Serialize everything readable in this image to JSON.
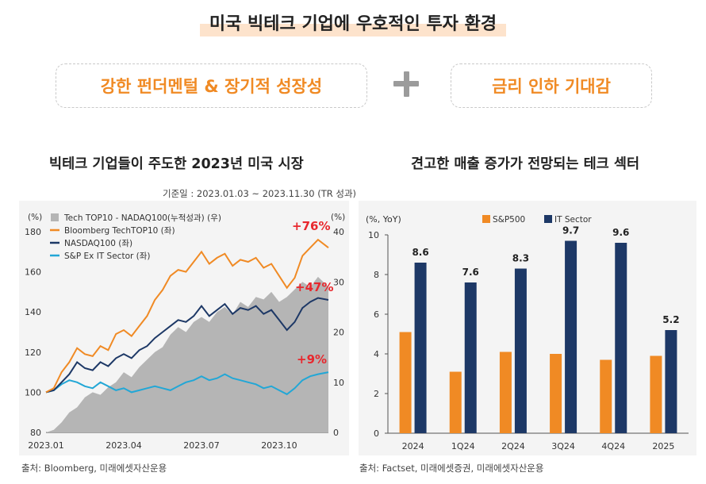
{
  "header": {
    "title": "미국 빅테크 기업에 우호적인 투자 환경",
    "pill_left": "강한 펀더멘털 & 장기적 성장성",
    "pill_right": "금리 인하 기대감"
  },
  "left_panel": {
    "title": "빅테크 기업들이 주도한 2023년 미국 시장",
    "basis": "기준일 : 2023.01.03 ~ 2023.11.30 (TR 성과)",
    "source": "출처: Bloomberg, 미래에셋자산운용"
  },
  "right_panel": {
    "title": "견고한 매출 증가가 전망되는 테크 섹터",
    "source": "출처: Factset, 미래에셋증권, 미래에셋자산운용"
  },
  "chart_data": [
    {
      "type": "line",
      "y_unit_left": "(%)",
      "y_unit_right": "(%)",
      "ylim_left": [
        80,
        180
      ],
      "yticks_left": [
        "180",
        "160",
        "140",
        "120",
        "100",
        "80"
      ],
      "ylim_right": [
        0,
        40
      ],
      "yticks_right": [
        "40",
        "30",
        "20",
        "10",
        "0"
      ],
      "x_ticks": [
        "2023.01",
        "2023.04",
        "2023.07",
        "2023.10"
      ],
      "x_tick_months": [
        0,
        3,
        6,
        9
      ],
      "x_range_months": [
        0,
        10.9
      ],
      "colors": {
        "area": "#b5b5b5",
        "bloomberg": "#f08a24",
        "nasdaq": "#1d3866",
        "sp": "#22a7d6",
        "annotation": "#e8282e"
      },
      "series": [
        {
          "name": "Tech TOP10 - NADAQ100(누적성과) (우)",
          "style": "area",
          "axis": "right",
          "x": [
            0,
            0.3,
            0.6,
            0.9,
            1.2,
            1.5,
            1.8,
            2.1,
            2.4,
            2.7,
            3.0,
            3.3,
            3.6,
            3.9,
            4.2,
            4.5,
            4.8,
            5.1,
            5.4,
            5.7,
            6.0,
            6.3,
            6.6,
            6.9,
            7.2,
            7.5,
            7.8,
            8.1,
            8.4,
            8.7,
            9.0,
            9.3,
            9.6,
            9.9,
            10.2,
            10.5,
            10.9
          ],
          "values": [
            0,
            0.5,
            2,
            4,
            5,
            7,
            8,
            7.5,
            9,
            10,
            12,
            11,
            13,
            14.5,
            16,
            17,
            19.5,
            21,
            20,
            22,
            23,
            22,
            24,
            25,
            23.5,
            26,
            25,
            27,
            26.5,
            28,
            26,
            27,
            28.5,
            30,
            29,
            31,
            29
          ]
        },
        {
          "name": "Bloomberg TechTOP10 (좌)",
          "style": "line",
          "axis": "left",
          "x": [
            0,
            0.3,
            0.6,
            0.9,
            1.2,
            1.5,
            1.8,
            2.1,
            2.4,
            2.7,
            3.0,
            3.3,
            3.6,
            3.9,
            4.2,
            4.5,
            4.8,
            5.1,
            5.4,
            5.7,
            6.0,
            6.3,
            6.6,
            6.9,
            7.2,
            7.5,
            7.8,
            8.1,
            8.4,
            8.7,
            9.0,
            9.3,
            9.6,
            9.9,
            10.2,
            10.5,
            10.9
          ],
          "values": [
            100,
            102,
            110,
            115,
            122,
            119,
            118,
            123,
            121,
            129,
            131,
            128,
            133,
            138,
            146,
            151,
            158,
            161,
            160,
            165,
            170,
            164,
            167,
            169,
            163,
            166,
            165,
            167,
            162,
            164,
            158,
            152,
            157,
            168,
            172,
            176,
            172
          ]
        },
        {
          "name": "NASDAQ100 (좌)",
          "style": "line",
          "axis": "left",
          "x": [
            0,
            0.3,
            0.6,
            0.9,
            1.2,
            1.5,
            1.8,
            2.1,
            2.4,
            2.7,
            3.0,
            3.3,
            3.6,
            3.9,
            4.2,
            4.5,
            4.8,
            5.1,
            5.4,
            5.7,
            6.0,
            6.3,
            6.6,
            6.9,
            7.2,
            7.5,
            7.8,
            8.1,
            8.4,
            8.7,
            9.0,
            9.3,
            9.6,
            9.9,
            10.2,
            10.5,
            10.9
          ],
          "values": [
            100,
            101,
            105,
            109,
            115,
            112,
            111,
            115,
            113,
            117,
            119,
            117,
            121,
            123,
            127,
            130,
            133,
            136,
            135,
            138,
            143,
            138,
            141,
            144,
            139,
            142,
            141,
            143,
            139,
            141,
            136,
            131,
            135,
            142,
            145,
            147,
            146
          ]
        },
        {
          "name": "S&P Ex IT Sector (좌)",
          "style": "line",
          "axis": "left",
          "x": [
            0,
            0.3,
            0.6,
            0.9,
            1.2,
            1.5,
            1.8,
            2.1,
            2.4,
            2.7,
            3.0,
            3.3,
            3.6,
            3.9,
            4.2,
            4.5,
            4.8,
            5.1,
            5.4,
            5.7,
            6.0,
            6.3,
            6.6,
            6.9,
            7.2,
            7.5,
            7.8,
            8.1,
            8.4,
            8.7,
            9.0,
            9.3,
            9.6,
            9.9,
            10.2,
            10.5,
            10.9
          ],
          "values": [
            100,
            101,
            104,
            106,
            105,
            103,
            102,
            105,
            103,
            101,
            102,
            100,
            101,
            102,
            103,
            102,
            101,
            103,
            105,
            106,
            108,
            106,
            107,
            109,
            107,
            106,
            105,
            104,
            102,
            103,
            101,
            99,
            102,
            106,
            108,
            109,
            110
          ]
        }
      ],
      "annotations": [
        "+76%",
        "+47%",
        "+9%"
      ]
    },
    {
      "type": "bar",
      "y_unit": "(%, YoY)",
      "ylim": [
        0,
        10
      ],
      "yticks": [
        "10",
        "8",
        "6",
        "4",
        "2",
        "0"
      ],
      "categories": [
        "2024",
        "1Q24",
        "2Q24",
        "3Q24",
        "4Q24",
        "2025"
      ],
      "series": [
        {
          "name": "S&P500",
          "color": "#f08a24",
          "values": [
            5.1,
            3.1,
            4.1,
            4.0,
            3.7,
            3.9
          ]
        },
        {
          "name": "IT Sector",
          "color": "#1d3866",
          "values": [
            8.6,
            7.6,
            8.3,
            9.7,
            9.6,
            5.2
          ],
          "labels": [
            "8.6",
            "7.6",
            "8.3",
            "9.7",
            "9.6",
            "5.2"
          ]
        }
      ]
    }
  ]
}
